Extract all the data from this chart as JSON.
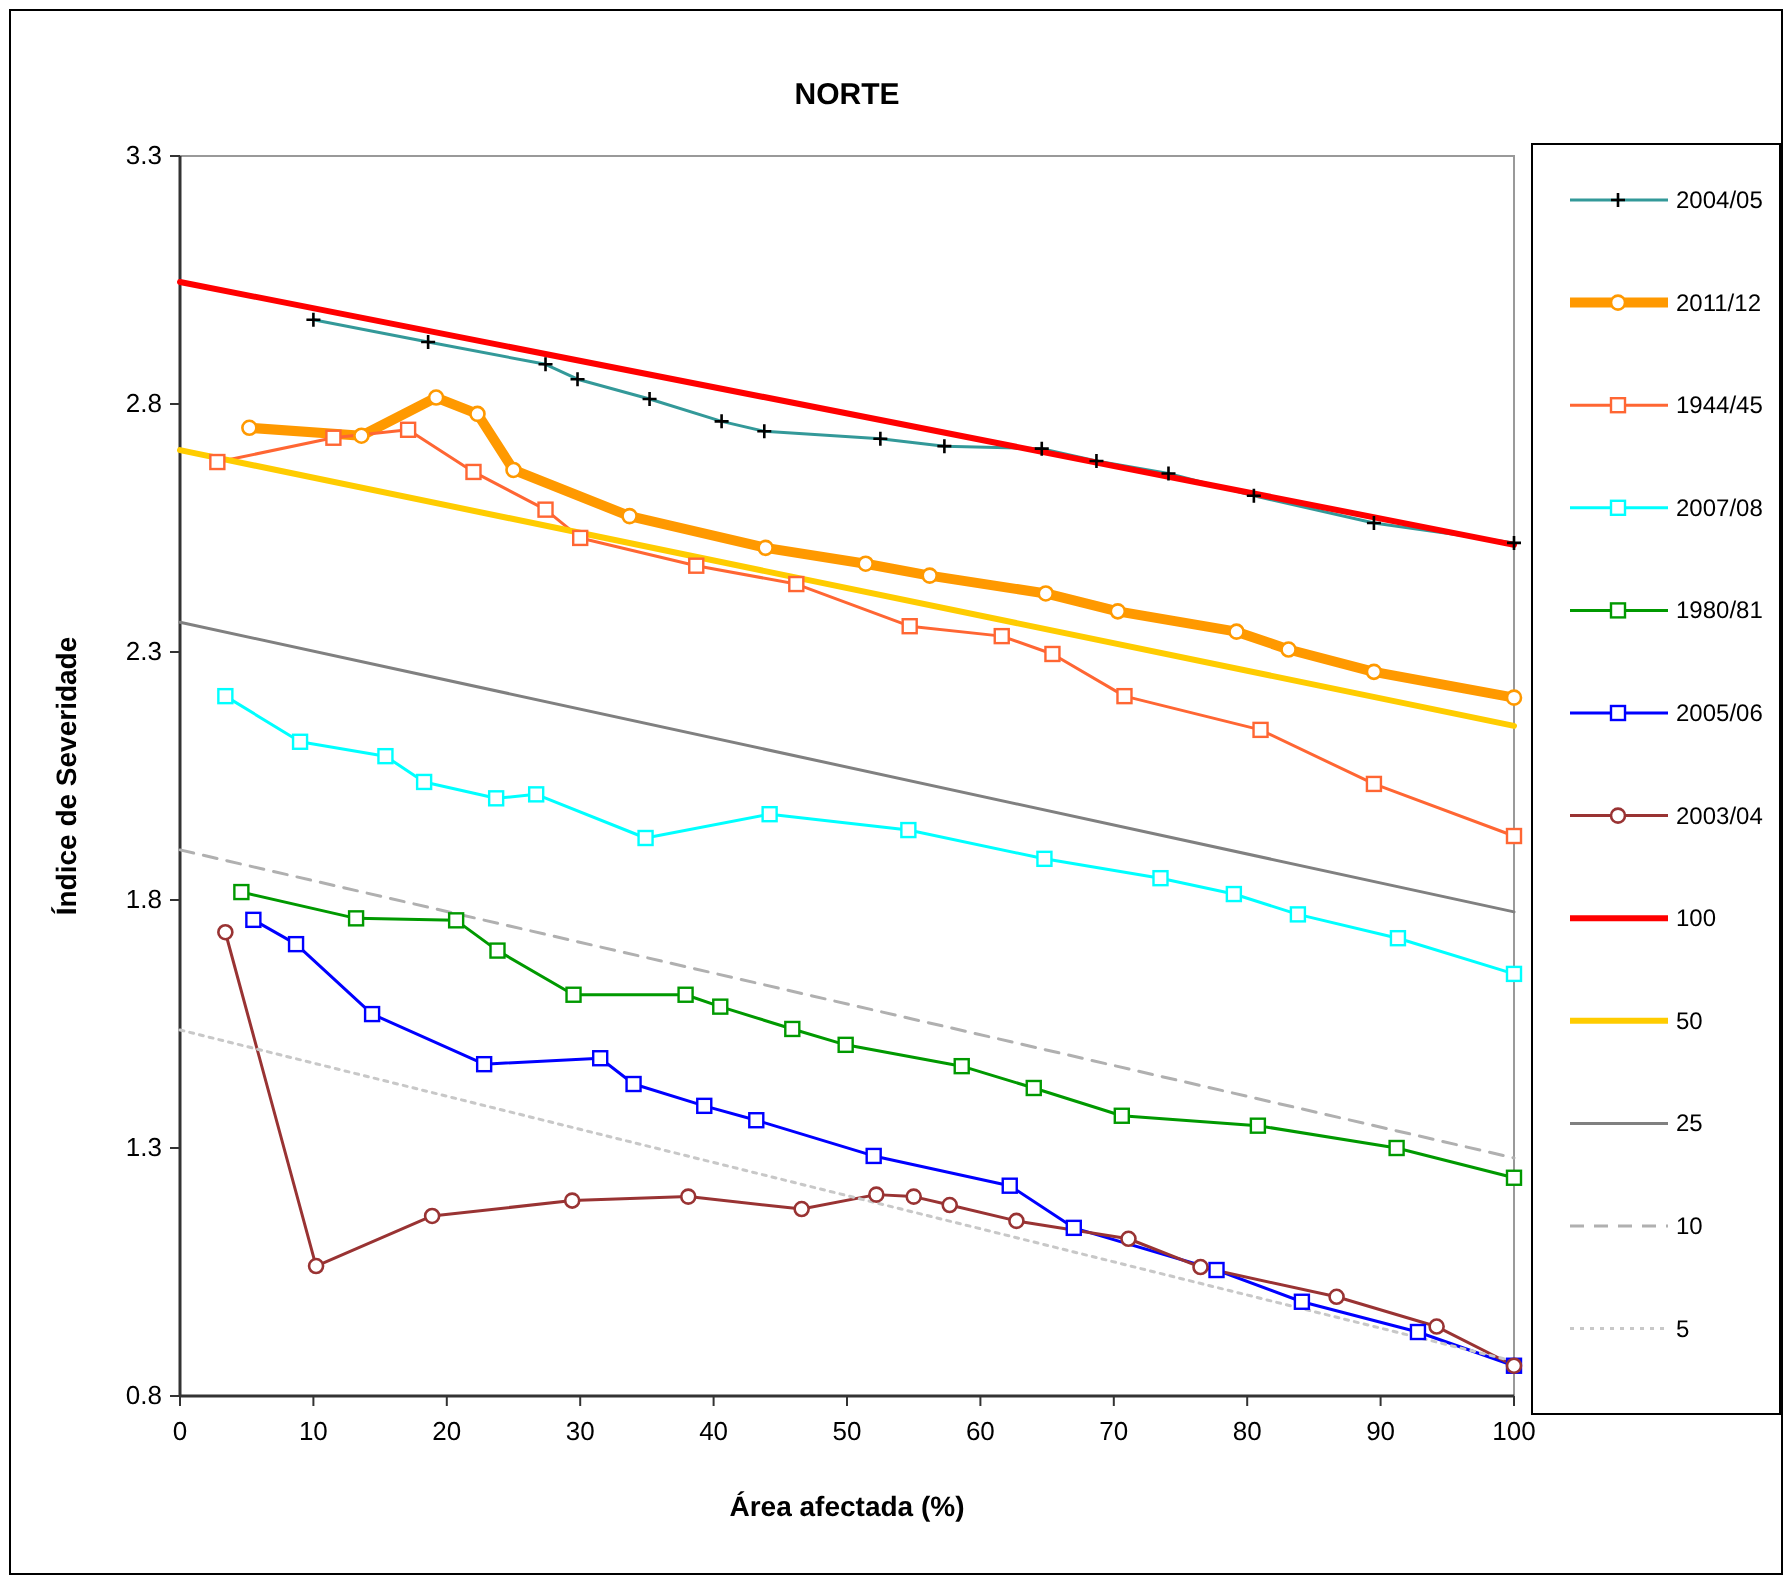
{
  "chart_data": {
    "type": "line",
    "title": "NORTE",
    "xlabel": "Área afectada (%)",
    "ylabel": "Índice de Severidade",
    "xlim": [
      0,
      100
    ],
    "xticks": [
      0,
      10,
      20,
      30,
      40,
      50,
      60,
      70,
      80,
      90,
      100
    ],
    "ylim": [
      0.8,
      3.3
    ],
    "yticks": [
      0.8,
      1.3,
      1.8,
      2.3,
      2.8,
      3.3
    ],
    "grid": false,
    "legend": "right",
    "line_style": "solid",
    "series": [
      {
        "name": "2004/05",
        "color": "#339999",
        "marker": "cross",
        "x": [
          10.0,
          18.6,
          27.4,
          29.8,
          35.2,
          40.6,
          43.8,
          52.5,
          57.3,
          64.6,
          68.7,
          74.1,
          80.5,
          89.5,
          100
        ],
        "values": [
          2.97,
          2.925,
          2.88,
          2.85,
          2.81,
          2.765,
          2.745,
          2.73,
          2.715,
          2.71,
          2.685,
          2.66,
          2.615,
          2.56,
          2.52
        ]
      },
      {
        "name": "2011/12",
        "color": "#ff9900",
        "marker": "circle",
        "x": [
          5.2,
          13.6,
          19.2,
          22.3,
          25.0,
          33.7,
          43.9,
          51.4,
          56.2,
          64.9,
          70.3,
          79.2,
          83.1,
          89.5,
          100
        ],
        "values": [
          2.752,
          2.736,
          2.813,
          2.78,
          2.667,
          2.574,
          2.51,
          2.478,
          2.454,
          2.418,
          2.382,
          2.341,
          2.305,
          2.26,
          2.208
        ]
      },
      {
        "name": "1944/45",
        "color": "#ff6633",
        "marker": "square",
        "x": [
          2.8,
          11.5,
          17.1,
          22.0,
          27.4,
          30.0,
          38.7,
          46.2,
          54.7,
          61.6,
          65.4,
          70.8,
          81.0,
          89.5,
          100
        ],
        "values": [
          2.683,
          2.732,
          2.748,
          2.663,
          2.587,
          2.53,
          2.474,
          2.437,
          2.352,
          2.332,
          2.296,
          2.211,
          2.143,
          2.034,
          1.929
        ]
      },
      {
        "name": "2007/08",
        "color": "#00ffff",
        "marker": "square",
        "x": [
          3.4,
          9.0,
          15.4,
          18.3,
          23.7,
          26.7,
          34.9,
          44.2,
          54.6,
          64.8,
          73.5,
          79.0,
          83.8,
          91.3,
          100
        ],
        "values": [
          2.211,
          2.119,
          2.09,
          2.038,
          2.005,
          2.013,
          1.925,
          1.973,
          1.941,
          1.883,
          1.844,
          1.812,
          1.771,
          1.723,
          1.651
        ]
      },
      {
        "name": "1980/81",
        "color": "#009900",
        "marker": "square",
        "x": [
          4.6,
          13.2,
          20.7,
          23.8,
          29.5,
          37.9,
          40.5,
          45.9,
          49.9,
          58.6,
          64.0,
          70.6,
          80.8,
          91.2,
          100
        ],
        "values": [
          1.816,
          1.763,
          1.759,
          1.698,
          1.609,
          1.609,
          1.585,
          1.54,
          1.508,
          1.465,
          1.421,
          1.365,
          1.345,
          1.3,
          1.24
        ]
      },
      {
        "name": "2005/06",
        "color": "#0000ff",
        "marker": "square",
        "x": [
          5.5,
          8.7,
          14.4,
          22.8,
          31.5,
          34.0,
          39.3,
          43.2,
          52.0,
          62.2,
          67.0,
          77.7,
          84.1,
          92.8,
          100
        ],
        "values": [
          1.76,
          1.711,
          1.57,
          1.469,
          1.481,
          1.429,
          1.385,
          1.356,
          1.284,
          1.224,
          1.139,
          1.054,
          0.99,
          0.929,
          0.861
        ]
      },
      {
        "name": "2003/04",
        "color": "#993333",
        "marker": "circle",
        "x": [
          3.4,
          10.2,
          18.9,
          29.4,
          38.1,
          46.6,
          52.2,
          55.0,
          57.7,
          62.7,
          71.1,
          76.5,
          86.7,
          94.2,
          100
        ],
        "values": [
          1.735,
          1.062,
          1.163,
          1.194,
          1.202,
          1.177,
          1.206,
          1.202,
          1.185,
          1.153,
          1.117,
          1.06,
          1.0,
          0.94,
          0.861
        ]
      },
      {
        "name": "100",
        "color": "#ff0000",
        "marker": "none",
        "x": [
          0,
          100
        ],
        "values": [
          3.046,
          2.516
        ]
      },
      {
        "name": "50",
        "color": "#ffcc00",
        "marker": "none",
        "x": [
          0,
          100
        ],
        "values": [
          2.707,
          2.151
        ]
      },
      {
        "name": "25",
        "color": "#808080",
        "marker": "none",
        "x": [
          0,
          100
        ],
        "values": [
          2.36,
          1.776
        ]
      },
      {
        "name": "10",
        "color": "#b0b0b0",
        "marker": "none",
        "line_style": "dashed",
        "x": [
          0,
          100
        ],
        "values": [
          1.901,
          1.28
        ]
      },
      {
        "name": "5",
        "color": "#c8c8c8",
        "marker": "none",
        "line_style": "dotted",
        "x": [
          0,
          100
        ],
        "values": [
          1.538,
          0.87
        ]
      }
    ]
  }
}
